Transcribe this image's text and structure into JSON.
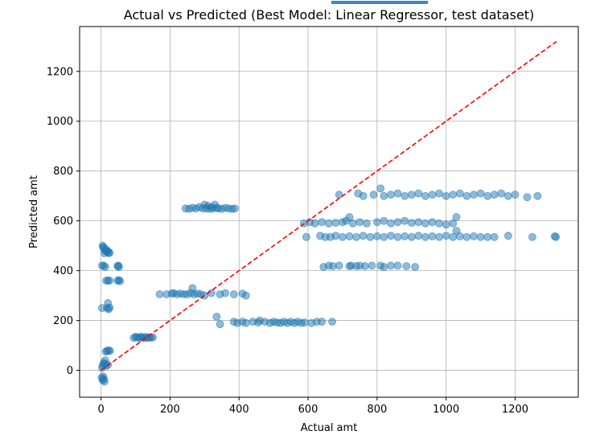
{
  "chart_data": {
    "type": "scatter",
    "title": "Actual vs Predicted (Best Model: Linear Regressor, test dataset)",
    "xlabel": "Actual amt",
    "ylabel": "Predicted amt",
    "xlim": [
      -62,
      1383
    ],
    "ylim": [
      -108,
      1380
    ],
    "x_ticks": [
      0,
      200,
      400,
      600,
      800,
      1000,
      1200
    ],
    "y_ticks": [
      0,
      200,
      400,
      600,
      800,
      1000,
      1200
    ],
    "grid": true,
    "colors": {
      "points": "#1f77b4",
      "reference_line": "#ff0000",
      "top_bar": "#3d85c6"
    },
    "reference_line": {
      "x": [
        0,
        1320
      ],
      "y": [
        0,
        1320
      ],
      "style": "dashed"
    },
    "series": [
      {
        "values": [
          [
            5,
            500
          ],
          [
            8,
            490
          ],
          [
            12,
            480
          ],
          [
            18,
            475
          ],
          [
            22,
            470
          ],
          [
            10,
            470
          ],
          [
            15,
            485
          ],
          [
            20,
            478
          ],
          [
            6,
            495
          ],
          [
            25,
            472
          ],
          [
            3,
            420
          ],
          [
            8,
            420
          ],
          [
            12,
            415
          ],
          [
            50,
            420
          ],
          [
            52,
            415
          ],
          [
            48,
            418
          ],
          [
            15,
            360
          ],
          [
            20,
            360
          ],
          [
            25,
            360
          ],
          [
            48,
            360
          ],
          [
            52,
            362
          ],
          [
            55,
            358
          ],
          [
            18,
            250
          ],
          [
            22,
            245
          ],
          [
            25,
            252
          ],
          [
            3,
            250
          ],
          [
            20,
            270
          ],
          [
            18,
            78
          ],
          [
            22,
            80
          ],
          [
            26,
            78
          ],
          [
            14,
            75
          ],
          [
            5,
            20
          ],
          [
            10,
            25
          ],
          [
            15,
            18
          ],
          [
            8,
            30
          ],
          [
            12,
            40
          ],
          [
            3,
            10
          ],
          [
            20,
            22
          ],
          [
            2,
            -30
          ],
          [
            5,
            -40
          ],
          [
            8,
            -35
          ],
          [
            10,
            -45
          ],
          [
            6,
            -25
          ],
          [
            95,
            130
          ],
          [
            100,
            135
          ],
          [
            105,
            132
          ],
          [
            110,
            130
          ],
          [
            115,
            135
          ],
          [
            120,
            132
          ],
          [
            125,
            130
          ],
          [
            130,
            134
          ],
          [
            135,
            130
          ],
          [
            140,
            133
          ],
          [
            145,
            131
          ],
          [
            150,
            132
          ],
          [
            170,
            305
          ],
          [
            190,
            305
          ],
          [
            205,
            308
          ],
          [
            210,
            310
          ],
          [
            220,
            305
          ],
          [
            230,
            308
          ],
          [
            240,
            305
          ],
          [
            250,
            305
          ],
          [
            260,
            310
          ],
          [
            265,
            330
          ],
          [
            270,
            305
          ],
          [
            280,
            308
          ],
          [
            290,
            305
          ],
          [
            300,
            300
          ],
          [
            320,
            310
          ],
          [
            345,
            305
          ],
          [
            360,
            310
          ],
          [
            385,
            305
          ],
          [
            410,
            308
          ],
          [
            420,
            300
          ],
          [
            335,
            215
          ],
          [
            345,
            185
          ],
          [
            385,
            195
          ],
          [
            395,
            190
          ],
          [
            410,
            195
          ],
          [
            420,
            190
          ],
          [
            440,
            195
          ],
          [
            455,
            192
          ],
          [
            460,
            200
          ],
          [
            475,
            195
          ],
          [
            490,
            190
          ],
          [
            500,
            195
          ],
          [
            510,
            192
          ],
          [
            520,
            190
          ],
          [
            530,
            195
          ],
          [
            540,
            190
          ],
          [
            550,
            195
          ],
          [
            560,
            190
          ],
          [
            570,
            195
          ],
          [
            580,
            190
          ],
          [
            590,
            192
          ],
          [
            610,
            190
          ],
          [
            625,
            195
          ],
          [
            640,
            195
          ],
          [
            670,
            195
          ],
          [
            245,
            650
          ],
          [
            255,
            648
          ],
          [
            265,
            652
          ],
          [
            275,
            650
          ],
          [
            285,
            655
          ],
          [
            295,
            650
          ],
          [
            300,
            665
          ],
          [
            305,
            650
          ],
          [
            310,
            660
          ],
          [
            315,
            648
          ],
          [
            320,
            655
          ],
          [
            325,
            650
          ],
          [
            330,
            665
          ],
          [
            335,
            652
          ],
          [
            340,
            650
          ],
          [
            350,
            648
          ],
          [
            360,
            652
          ],
          [
            370,
            650
          ],
          [
            380,
            648
          ],
          [
            388,
            650
          ],
          [
            645,
            415
          ],
          [
            660,
            420
          ],
          [
            672,
            418
          ],
          [
            690,
            420
          ],
          [
            720,
            418
          ],
          [
            725,
            420
          ],
          [
            740,
            418
          ],
          [
            750,
            420
          ],
          [
            765,
            418
          ],
          [
            785,
            420
          ],
          [
            810,
            420
          ],
          [
            820,
            415
          ],
          [
            840,
            420
          ],
          [
            860,
            420
          ],
          [
            885,
            418
          ],
          [
            910,
            415
          ],
          [
            588,
            590
          ],
          [
            605,
            595
          ],
          [
            620,
            590
          ],
          [
            640,
            595
          ],
          [
            660,
            590
          ],
          [
            680,
            592
          ],
          [
            700,
            595
          ],
          [
            710,
            600
          ],
          [
            720,
            615
          ],
          [
            730,
            590
          ],
          [
            750,
            595
          ],
          [
            770,
            590
          ],
          [
            800,
            595
          ],
          [
            820,
            600
          ],
          [
            840,
            590
          ],
          [
            860,
            595
          ],
          [
            880,
            600
          ],
          [
            900,
            592
          ],
          [
            920,
            595
          ],
          [
            940,
            590
          ],
          [
            960,
            595
          ],
          [
            980,
            590
          ],
          [
            1000,
            585
          ],
          [
            1020,
            590
          ],
          [
            1030,
            615
          ],
          [
            595,
            535
          ],
          [
            635,
            540
          ],
          [
            650,
            535
          ],
          [
            665,
            535
          ],
          [
            680,
            540
          ],
          [
            700,
            535
          ],
          [
            720,
            538
          ],
          [
            740,
            535
          ],
          [
            760,
            540
          ],
          [
            780,
            535
          ],
          [
            800,
            538
          ],
          [
            820,
            535
          ],
          [
            840,
            540
          ],
          [
            860,
            535
          ],
          [
            880,
            538
          ],
          [
            900,
            535
          ],
          [
            920,
            540
          ],
          [
            940,
            535
          ],
          [
            960,
            538
          ],
          [
            980,
            535
          ],
          [
            1000,
            540
          ],
          [
            1020,
            535
          ],
          [
            1040,
            538
          ],
          [
            1060,
            535
          ],
          [
            1080,
            538
          ],
          [
            1100,
            535
          ],
          [
            1120,
            535
          ],
          [
            1140,
            535
          ],
          [
            1180,
            540
          ],
          [
            1250,
            535
          ],
          [
            1315,
            538
          ],
          [
            1318,
            535
          ],
          [
            1030,
            560
          ],
          [
            690,
            705
          ],
          [
            745,
            710
          ],
          [
            760,
            700
          ],
          [
            790,
            705
          ],
          [
            810,
            730
          ],
          [
            820,
            700
          ],
          [
            840,
            705
          ],
          [
            860,
            710
          ],
          [
            880,
            700
          ],
          [
            900,
            705
          ],
          [
            920,
            710
          ],
          [
            940,
            700
          ],
          [
            960,
            705
          ],
          [
            980,
            710
          ],
          [
            1000,
            700
          ],
          [
            1020,
            705
          ],
          [
            1040,
            710
          ],
          [
            1060,
            700
          ],
          [
            1080,
            705
          ],
          [
            1100,
            710
          ],
          [
            1120,
            700
          ],
          [
            1140,
            705
          ],
          [
            1160,
            710
          ],
          [
            1180,
            700
          ],
          [
            1200,
            705
          ],
          [
            1235,
            695
          ],
          [
            1265,
            700
          ]
        ]
      }
    ]
  }
}
